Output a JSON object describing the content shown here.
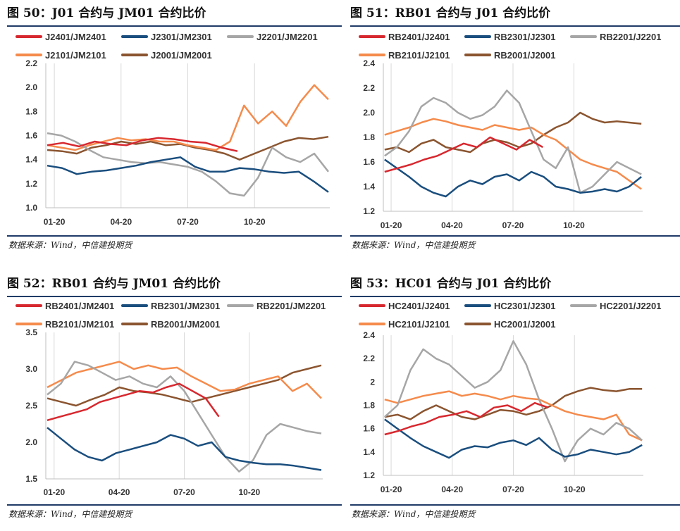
{
  "panels": [
    {
      "title": "图 50：J01 合约与 JM01 合约比价",
      "source": "数据来源：Wind，中信建投期货"
    },
    {
      "title": "图 51：RB01 合约与 J01 合约比价",
      "source": "数据来源：Wind，中信建投期货"
    },
    {
      "title": "图 52：RB01 合约与 JM01 合约比价",
      "source": "数据来源：Wind，中信建投期货"
    },
    {
      "title": "图 53：HC01 合约与 J01 合约比价",
      "source": "数据来源：Wind，中信建投期货"
    }
  ],
  "colors": {
    "red": "#d7282f",
    "navy": "#1a4e7e",
    "gray": "#a6a6a6",
    "orange": "#f58b4c",
    "brown": "#8b5530",
    "grid": "#d9d9d9"
  },
  "chart_data": [
    {
      "type": "line",
      "title": "",
      "x_ticks": [
        "01-20",
        "04-20",
        "07-20",
        "10-20"
      ],
      "ylim": [
        1.0,
        2.2
      ],
      "y_ticks": [
        "1.0",
        "1.2",
        "1.4",
        "1.6",
        "1.8",
        "2.0",
        "2.2"
      ],
      "grid": "vertical",
      "series": [
        {
          "name": "J2401/JM2401",
          "color": "red",
          "x_end": 0.68,
          "values": [
            1.52,
            1.54,
            1.51,
            1.55,
            1.53,
            1.52,
            1.56,
            1.58,
            1.57,
            1.55,
            1.54,
            1.5,
            1.47
          ]
        },
        {
          "name": "J2301/JM2301",
          "color": "navy",
          "x_end": 1.0,
          "values": [
            1.35,
            1.33,
            1.28,
            1.3,
            1.31,
            1.33,
            1.35,
            1.38,
            1.4,
            1.42,
            1.34,
            1.3,
            1.3,
            1.33,
            1.32,
            1.3,
            1.29,
            1.3,
            1.22,
            1.13
          ]
        },
        {
          "name": "J2201/JM2201",
          "color": "gray",
          "x_end": 1.0,
          "values": [
            1.62,
            1.6,
            1.55,
            1.48,
            1.42,
            1.4,
            1.38,
            1.37,
            1.38,
            1.36,
            1.34,
            1.3,
            1.22,
            1.12,
            1.1,
            1.25,
            1.5,
            1.42,
            1.38,
            1.45,
            1.3
          ]
        },
        {
          "name": "J2101/JM2101",
          "color": "orange",
          "x_end": 1.0,
          "values": [
            1.52,
            1.5,
            1.48,
            1.52,
            1.55,
            1.58,
            1.56,
            1.57,
            1.55,
            1.55,
            1.52,
            1.5,
            1.48,
            1.55,
            1.85,
            1.7,
            1.8,
            1.68,
            1.88,
            2.02,
            1.9
          ]
        },
        {
          "name": "J2001/JM2001",
          "color": "brown",
          "x_end": 1.0,
          "values": [
            1.48,
            1.47,
            1.45,
            1.5,
            1.52,
            1.55,
            1.53,
            1.55,
            1.52,
            1.53,
            1.5,
            1.48,
            1.45,
            1.4,
            1.45,
            1.5,
            1.55,
            1.58,
            1.57,
            1.59
          ]
        }
      ]
    },
    {
      "type": "line",
      "title": "",
      "x_ticks": [
        "01-20",
        "04-20",
        "07-20",
        "10-20"
      ],
      "ylim": [
        1.2,
        2.4
      ],
      "y_ticks": [
        "1.2",
        "1.4",
        "1.6",
        "1.8",
        "2.0",
        "2.2",
        "2.4"
      ],
      "grid": "vertical",
      "series": [
        {
          "name": "RB2401/J2401",
          "color": "red",
          "x_end": 0.62,
          "values": [
            1.52,
            1.55,
            1.58,
            1.62,
            1.65,
            1.7,
            1.75,
            1.72,
            1.8,
            1.75,
            1.7,
            1.78,
            1.72
          ]
        },
        {
          "name": "RB2301/J2301",
          "color": "navy",
          "x_end": 1.0,
          "values": [
            1.62,
            1.55,
            1.48,
            1.4,
            1.35,
            1.32,
            1.4,
            1.45,
            1.42,
            1.48,
            1.5,
            1.45,
            1.52,
            1.48,
            1.4,
            1.38,
            1.35,
            1.36,
            1.38,
            1.36,
            1.4,
            1.48
          ]
        },
        {
          "name": "RB2201/J2201",
          "color": "gray",
          "x_end": 1.0,
          "values": [
            1.65,
            1.72,
            1.85,
            2.05,
            2.12,
            2.08,
            2.0,
            1.95,
            1.98,
            2.05,
            2.18,
            2.08,
            1.85,
            1.62,
            1.55,
            1.72,
            1.35,
            1.4,
            1.5,
            1.6,
            1.55,
            1.5
          ]
        },
        {
          "name": "RB2101/J2101",
          "color": "orange",
          "x_end": 1.0,
          "values": [
            1.82,
            1.85,
            1.88,
            1.92,
            1.95,
            1.93,
            1.9,
            1.88,
            1.86,
            1.9,
            1.88,
            1.86,
            1.88,
            1.82,
            1.78,
            1.7,
            1.62,
            1.58,
            1.55,
            1.52,
            1.45,
            1.38
          ]
        },
        {
          "name": "RB2001/J2001",
          "color": "brown",
          "x_end": 1.0,
          "values": [
            1.7,
            1.72,
            1.68,
            1.75,
            1.78,
            1.72,
            1.7,
            1.68,
            1.75,
            1.78,
            1.76,
            1.72,
            1.75,
            1.82,
            1.88,
            1.92,
            2.0,
            1.95,
            1.92,
            1.93,
            1.92,
            1.91
          ]
        }
      ]
    },
    {
      "type": "line",
      "title": "",
      "x_ticks": [
        "01-20",
        "04-20",
        "07-20",
        "10-20"
      ],
      "ylim": [
        1.5,
        3.5
      ],
      "y_ticks": [
        "1.5",
        "2.0",
        "2.5",
        "3.0",
        "3.5"
      ],
      "grid": "vertical",
      "series": [
        {
          "name": "RB2401/JM2401",
          "color": "red",
          "x_end": 0.63,
          "values": [
            2.3,
            2.35,
            2.4,
            2.45,
            2.55,
            2.6,
            2.65,
            2.7,
            2.68,
            2.75,
            2.8,
            2.7,
            2.6,
            2.35
          ]
        },
        {
          "name": "RB2301/JM2301",
          "color": "navy",
          "x_end": 1.0,
          "values": [
            2.2,
            2.05,
            1.9,
            1.8,
            1.75,
            1.85,
            1.9,
            1.95,
            2.0,
            2.1,
            2.05,
            1.95,
            2.0,
            1.8,
            1.75,
            1.72,
            1.7,
            1.7,
            1.68,
            1.65,
            1.62
          ]
        },
        {
          "name": "RB2201/JM2201",
          "color": "gray",
          "x_end": 1.0,
          "values": [
            2.65,
            2.8,
            3.1,
            3.05,
            2.95,
            2.85,
            2.9,
            2.8,
            2.75,
            2.9,
            2.7,
            2.4,
            2.1,
            1.8,
            1.6,
            1.75,
            2.1,
            2.25,
            2.2,
            2.15,
            2.12
          ]
        },
        {
          "name": "RB2101/JM2101",
          "color": "orange",
          "x_end": 1.0,
          "values": [
            2.75,
            2.85,
            2.95,
            3.0,
            3.05,
            3.1,
            3.0,
            3.05,
            3.0,
            3.02,
            2.9,
            2.8,
            2.7,
            2.72,
            2.8,
            2.85,
            2.9,
            2.7,
            2.8,
            2.6
          ]
        },
        {
          "name": "RB2001/JM2001",
          "color": "brown",
          "x_end": 1.0,
          "values": [
            2.6,
            2.55,
            2.5,
            2.58,
            2.65,
            2.75,
            2.7,
            2.68,
            2.65,
            2.6,
            2.55,
            2.6,
            2.65,
            2.7,
            2.75,
            2.8,
            2.85,
            2.95,
            3.0,
            3.05
          ]
        }
      ]
    },
    {
      "type": "line",
      "title": "",
      "x_ticks": [
        "01-20",
        "04-20",
        "07-20",
        "10-20"
      ],
      "ylim": [
        1.2,
        2.4
      ],
      "y_ticks": [
        "1.2",
        "1.4",
        "1.6",
        "1.8",
        "2",
        "2.2",
        "2.4"
      ],
      "grid": "vertical",
      "series": [
        {
          "name": "HC2401/J2401",
          "color": "red",
          "x_end": 0.64,
          "values": [
            1.55,
            1.58,
            1.62,
            1.65,
            1.7,
            1.72,
            1.75,
            1.7,
            1.78,
            1.8,
            1.75,
            1.82,
            1.78
          ]
        },
        {
          "name": "HC2301/J2301",
          "color": "navy",
          "x_end": 1.0,
          "values": [
            1.68,
            1.6,
            1.52,
            1.45,
            1.4,
            1.35,
            1.42,
            1.45,
            1.44,
            1.48,
            1.5,
            1.46,
            1.52,
            1.42,
            1.36,
            1.38,
            1.42,
            1.4,
            1.38,
            1.4,
            1.46
          ]
        },
        {
          "name": "HC2201/J2201",
          "color": "gray",
          "x_end": 1.0,
          "values": [
            1.7,
            1.8,
            2.1,
            2.28,
            2.2,
            2.15,
            2.05,
            1.95,
            2.0,
            2.1,
            2.35,
            2.15,
            1.85,
            1.6,
            1.32,
            1.5,
            1.6,
            1.55,
            1.65,
            1.6,
            1.5
          ]
        },
        {
          "name": "HC2101/J2101",
          "color": "orange",
          "x_end": 1.0,
          "values": [
            1.85,
            1.82,
            1.85,
            1.88,
            1.9,
            1.92,
            1.88,
            1.9,
            1.88,
            1.85,
            1.88,
            1.86,
            1.85,
            1.8,
            1.75,
            1.72,
            1.7,
            1.68,
            1.72,
            1.55,
            1.5
          ]
        },
        {
          "name": "HC2001/J2001",
          "color": "brown",
          "x_end": 1.0,
          "values": [
            1.7,
            1.72,
            1.68,
            1.75,
            1.8,
            1.75,
            1.7,
            1.68,
            1.72,
            1.76,
            1.75,
            1.72,
            1.75,
            1.8,
            1.88,
            1.92,
            1.95,
            1.93,
            1.92,
            1.94,
            1.94
          ]
        }
      ]
    }
  ]
}
